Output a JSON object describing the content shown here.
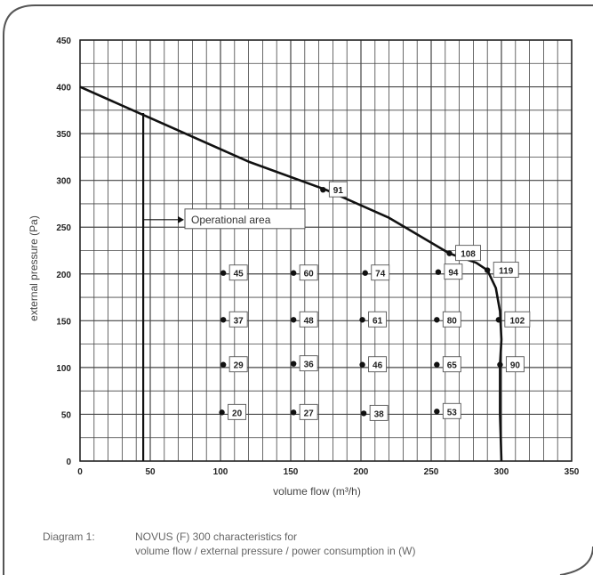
{
  "chart_data": {
    "type": "line",
    "xlabel": "volume flow (m³/h)",
    "ylabel": "external pressure (Pa)",
    "xlim": [
      0,
      350
    ],
    "ylim": [
      0,
      450
    ],
    "x_ticks": [
      "0",
      "50",
      "100",
      "150",
      "200",
      "250",
      "300",
      "350"
    ],
    "y_ticks": [
      "0",
      "50",
      "100",
      "150",
      "200",
      "250",
      "300",
      "350",
      "400",
      "450"
    ],
    "grid": true,
    "series": [
      {
        "values": [
          [
            0,
            400
          ],
          [
            60,
            360
          ],
          [
            120,
            320
          ],
          [
            175,
            290
          ],
          [
            220,
            260
          ],
          [
            263,
            222
          ],
          [
            282,
            212
          ],
          [
            290,
            204
          ],
          [
            296,
            185
          ],
          [
            299,
            160
          ],
          [
            300,
            130
          ],
          [
            299,
            103
          ],
          [
            299,
            50
          ],
          [
            300,
            0
          ]
        ]
      }
    ],
    "operational_area_boundary": {
      "x": 45,
      "y_top": 372
    },
    "annotation": "Operational area",
    "points": [
      {
        "x": 173,
        "y": 290,
        "label": "91"
      },
      {
        "x": 263,
        "y": 222,
        "label": "108"
      },
      {
        "x": 290,
        "y": 204,
        "label": "119"
      },
      {
        "x": 298,
        "y": 151,
        "label": "102"
      },
      {
        "x": 299,
        "y": 103,
        "label": "90"
      },
      {
        "x": 102,
        "y": 201,
        "label": "45"
      },
      {
        "x": 152,
        "y": 201,
        "label": "60"
      },
      {
        "x": 203,
        "y": 201,
        "label": "74"
      },
      {
        "x": 255,
        "y": 202,
        "label": "94"
      },
      {
        "x": 102,
        "y": 151,
        "label": "37"
      },
      {
        "x": 152,
        "y": 151,
        "label": "48"
      },
      {
        "x": 201,
        "y": 151,
        "label": "61"
      },
      {
        "x": 254,
        "y": 151,
        "label": "80"
      },
      {
        "x": 102,
        "y": 103,
        "label": "29"
      },
      {
        "x": 152,
        "y": 104,
        "label": "36"
      },
      {
        "x": 201,
        "y": 103,
        "label": "46"
      },
      {
        "x": 254,
        "y": 103,
        "label": "65"
      },
      {
        "x": 101,
        "y": 52,
        "label": "20"
      },
      {
        "x": 152,
        "y": 52,
        "label": "27"
      },
      {
        "x": 202,
        "y": 51,
        "label": "38"
      },
      {
        "x": 254,
        "y": 53,
        "label": "53"
      }
    ]
  },
  "caption": {
    "number": "Diagram 1:",
    "line1": "NOVUS (F) 300 characteristics for",
    "line2": "volume flow / external pressure / power consumption in (W)"
  }
}
